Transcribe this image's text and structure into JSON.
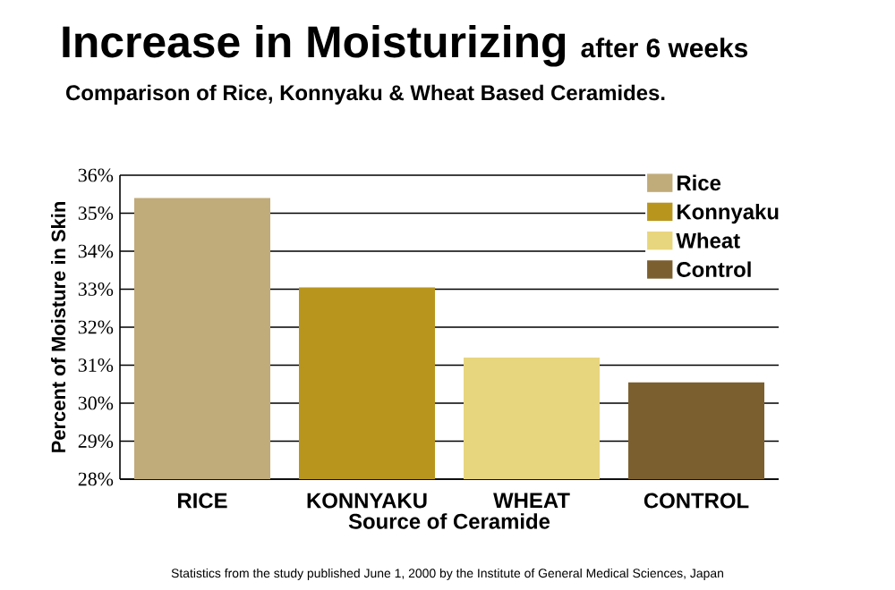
{
  "chart_data": {
    "type": "bar",
    "title": "Increase in Moisturizing",
    "subtitle": "after 6 weeks",
    "xlabel": "Source of Ceramide",
    "ylabel": "Percent of Moisture in Skin",
    "annotations": [
      "Comparison of Rice, Konnyaku & Wheat Based Ceramides.",
      "Statistics from the study published June 1, 2000 by the Institute of General Medical Sciences, Japan"
    ],
    "categories": [
      "RICE",
      "KONNYAKU",
      "WHEAT",
      "CONTROL"
    ],
    "series": [
      {
        "name": "Rice",
        "color": "#c0ab7a",
        "values": [
          35.4,
          null,
          null,
          null
        ]
      },
      {
        "name": "Konnyaku",
        "color": "#b8961e",
        "values": [
          null,
          33.05,
          null,
          null
        ]
      },
      {
        "name": "Wheat",
        "color": "#e8d67e",
        "values": [
          null,
          null,
          31.2,
          null
        ]
      },
      {
        "name": "Control",
        "color": "#7b5f2f",
        "values": [
          null,
          null,
          null,
          30.55
        ]
      }
    ],
    "ylim": [
      28,
      36
    ],
    "yticks": [
      {
        "value": 28,
        "label": "28%"
      },
      {
        "value": 29,
        "label": "29%"
      },
      {
        "value": 30,
        "label": "30%"
      },
      {
        "value": 31,
        "label": "31%"
      },
      {
        "value": 32,
        "label": "32%"
      },
      {
        "value": 33,
        "label": "33%"
      },
      {
        "value": 34,
        "label": "34%"
      },
      {
        "value": 35,
        "label": "35%"
      },
      {
        "value": 36,
        "label": "36%"
      }
    ],
    "grid": "y",
    "legend": "top right"
  }
}
